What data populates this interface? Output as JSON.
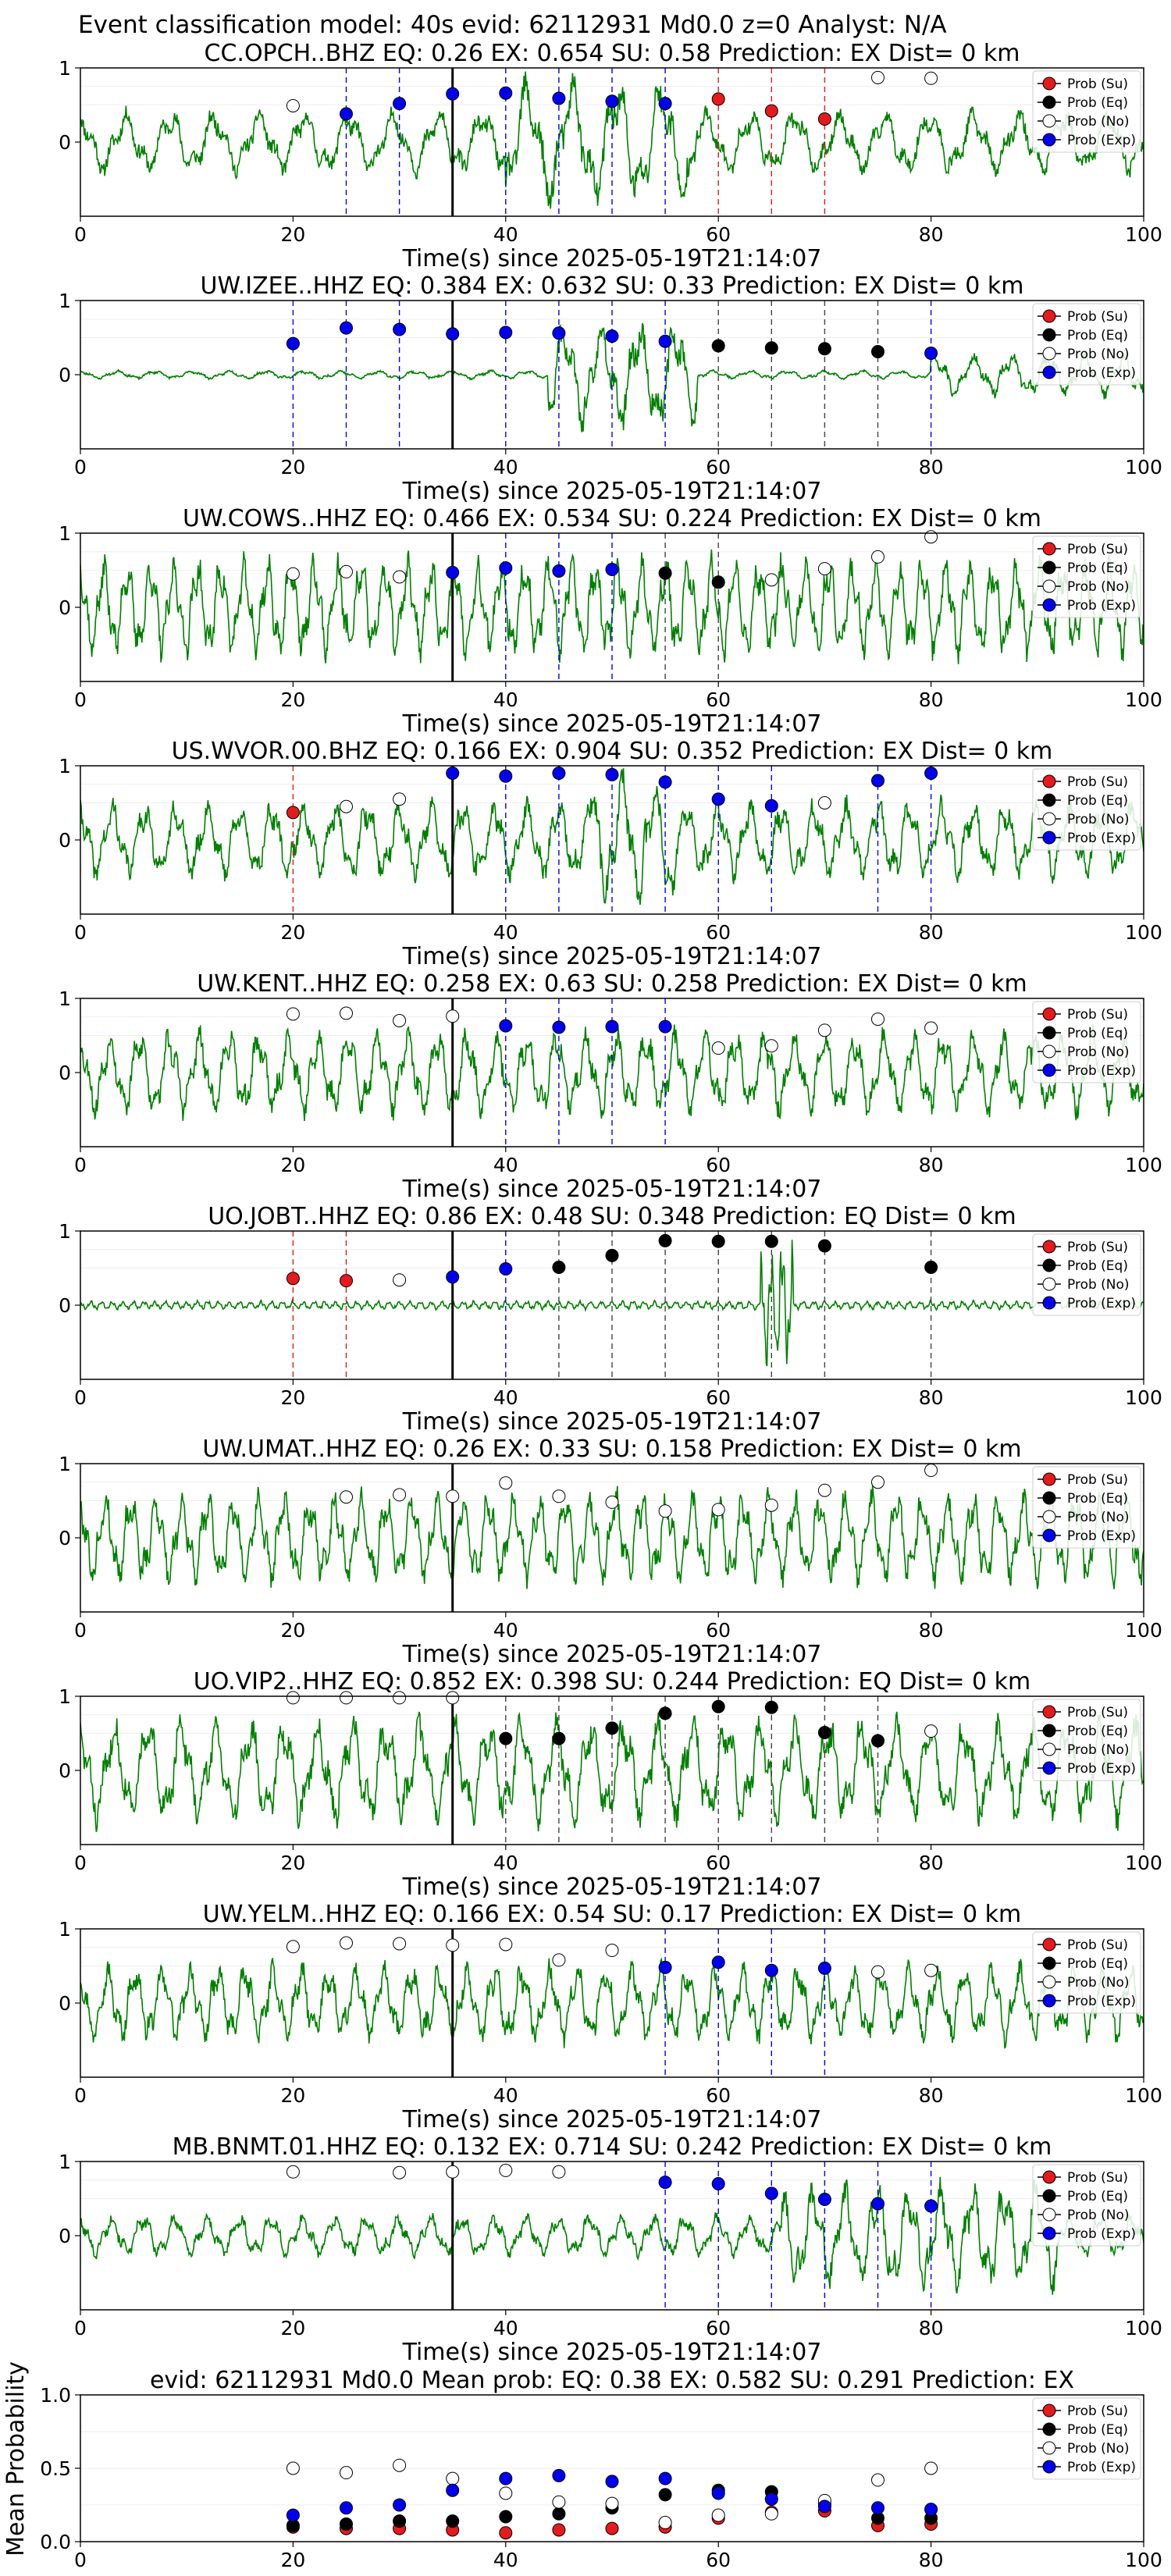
{
  "page": {
    "suptitle": "Event classification model: 40s evid: 62112931 Md0.0 z=0 Analyst: N/A",
    "xlabel": "Time(s) since 2025-05-19T21:14:07",
    "ylabel_summary": "Mean Probability"
  },
  "legend": [
    "Prob (Su)",
    "Prob (Eq)",
    "Prob (No)",
    "Prob (Exp)"
  ],
  "colors": {
    "su": "#e41a1c",
    "eq": "#000000",
    "no": "#ffffff",
    "exp": "#0000ee",
    "trace": "#008000",
    "axis": "#000000"
  },
  "chart_data": [
    {
      "type": "line",
      "title": "CC.OPCH..BHZ   EQ: 0.26  EX: 0.654  SU: 0.58   Prediction: EX    Dist= 0 km",
      "xlim": [
        0,
        100
      ],
      "ylim": [
        -1,
        1
      ],
      "xticks": [
        "0",
        "20",
        "40",
        "60",
        "80",
        "100"
      ],
      "yticks": [
        "1",
        "0"
      ],
      "trace": {
        "seed": 11,
        "amp": 0.45,
        "period": 4.2,
        "burst_start": 40,
        "burst_end": 58,
        "burst_amp": 0.9,
        "end_burst": 0
      },
      "windows": [
        {
          "t": 20,
          "p": 0.49,
          "cls": "no"
        },
        {
          "t": 25,
          "p": 0.38,
          "cls": "exp"
        },
        {
          "t": 30,
          "p": 0.52,
          "cls": "exp"
        },
        {
          "t": 35,
          "p": 0.65,
          "cls": "exp"
        },
        {
          "t": 40,
          "p": 0.66,
          "cls": "exp"
        },
        {
          "t": 45,
          "p": 0.59,
          "cls": "exp"
        },
        {
          "t": 50,
          "p": 0.55,
          "cls": "exp"
        },
        {
          "t": 55,
          "p": 0.52,
          "cls": "exp"
        },
        {
          "t": 60,
          "p": 0.58,
          "cls": "su"
        },
        {
          "t": 65,
          "p": 0.42,
          "cls": "su"
        },
        {
          "t": 70,
          "p": 0.31,
          "cls": "su"
        },
        {
          "t": 75,
          "p": 0.87,
          "cls": "no"
        },
        {
          "t": 80,
          "p": 0.86,
          "cls": "no"
        }
      ]
    },
    {
      "type": "line",
      "title": "UW.IZEE..HHZ   EQ: 0.384  EX: 0.632  SU: 0.33   Prediction: EX    Dist= 0 km",
      "xlim": [
        0,
        100
      ],
      "ylim": [
        -1,
        1
      ],
      "xticks": [
        "0",
        "20",
        "40",
        "60",
        "80",
        "100"
      ],
      "yticks": [
        "1",
        "0"
      ],
      "trace": {
        "seed": 23,
        "amp": 0.06,
        "period": 3.5,
        "burst_start": 44,
        "burst_end": 58,
        "burst_amp": 0.75,
        "end_burst": 0.3
      },
      "windows": [
        {
          "t": 20,
          "p": 0.42,
          "cls": "exp"
        },
        {
          "t": 25,
          "p": 0.63,
          "cls": "exp"
        },
        {
          "t": 30,
          "p": 0.61,
          "cls": "exp"
        },
        {
          "t": 35,
          "p": 0.55,
          "cls": "exp"
        },
        {
          "t": 40,
          "p": 0.57,
          "cls": "exp"
        },
        {
          "t": 45,
          "p": 0.56,
          "cls": "exp"
        },
        {
          "t": 50,
          "p": 0.52,
          "cls": "exp"
        },
        {
          "t": 55,
          "p": 0.45,
          "cls": "exp"
        },
        {
          "t": 60,
          "p": 0.39,
          "cls": "eq"
        },
        {
          "t": 65,
          "p": 0.36,
          "cls": "eq"
        },
        {
          "t": 70,
          "p": 0.35,
          "cls": "eq"
        },
        {
          "t": 75,
          "p": 0.31,
          "cls": "eq"
        },
        {
          "t": 80,
          "p": 0.29,
          "cls": "exp"
        }
      ]
    },
    {
      "type": "line",
      "title": "UW.COWS..HHZ   EQ: 0.466  EX: 0.534  SU: 0.224   Prediction: EX    Dist= 0 km",
      "xlim": [
        0,
        100
      ],
      "ylim": [
        -1,
        1
      ],
      "xticks": [
        "0",
        "20",
        "40",
        "60",
        "80",
        "100"
      ],
      "yticks": [
        "1",
        "0"
      ],
      "trace": {
        "seed": 37,
        "amp": 0.7,
        "period": 2.2,
        "burst_start": 0,
        "burst_end": 0,
        "burst_amp": 0,
        "end_burst": 0
      },
      "windows": [
        {
          "t": 20,
          "p": 0.45,
          "cls": "no"
        },
        {
          "t": 25,
          "p": 0.48,
          "cls": "no"
        },
        {
          "t": 30,
          "p": 0.41,
          "cls": "no"
        },
        {
          "t": 35,
          "p": 0.47,
          "cls": "exp"
        },
        {
          "t": 40,
          "p": 0.53,
          "cls": "exp"
        },
        {
          "t": 45,
          "p": 0.49,
          "cls": "exp"
        },
        {
          "t": 50,
          "p": 0.51,
          "cls": "exp"
        },
        {
          "t": 55,
          "p": 0.46,
          "cls": "eq"
        },
        {
          "t": 60,
          "p": 0.34,
          "cls": "eq"
        },
        {
          "t": 65,
          "p": 0.37,
          "cls": "no"
        },
        {
          "t": 70,
          "p": 0.52,
          "cls": "no"
        },
        {
          "t": 75,
          "p": 0.68,
          "cls": "no"
        },
        {
          "t": 80,
          "p": 0.95,
          "cls": "no"
        }
      ]
    },
    {
      "type": "line",
      "title": "US.WVOR.00.BHZ   EQ: 0.166  EX: 0.904  SU: 0.352   Prediction: EX    Dist= 0 km",
      "xlim": [
        0,
        100
      ],
      "ylim": [
        -1,
        1
      ],
      "xticks": [
        "0",
        "20",
        "40",
        "60",
        "80",
        "100"
      ],
      "yticks": [
        "1",
        "0"
      ],
      "trace": {
        "seed": 41,
        "amp": 0.55,
        "period": 3.0,
        "burst_start": 48,
        "burst_end": 56,
        "burst_amp": 0.95,
        "end_burst": 0
      },
      "windows": [
        {
          "t": 20,
          "p": 0.37,
          "cls": "su"
        },
        {
          "t": 25,
          "p": 0.45,
          "cls": "no"
        },
        {
          "t": 30,
          "p": 0.55,
          "cls": "no"
        },
        {
          "t": 35,
          "p": 0.9,
          "cls": "exp"
        },
        {
          "t": 40,
          "p": 0.86,
          "cls": "exp"
        },
        {
          "t": 45,
          "p": 0.9,
          "cls": "exp"
        },
        {
          "t": 50,
          "p": 0.88,
          "cls": "exp"
        },
        {
          "t": 55,
          "p": 0.78,
          "cls": "exp"
        },
        {
          "t": 60,
          "p": 0.55,
          "cls": "exp"
        },
        {
          "t": 65,
          "p": 0.46,
          "cls": "exp"
        },
        {
          "t": 70,
          "p": 0.5,
          "cls": "no"
        },
        {
          "t": 75,
          "p": 0.8,
          "cls": "exp"
        },
        {
          "t": 80,
          "p": 0.9,
          "cls": "exp"
        }
      ]
    },
    {
      "type": "line",
      "title": "UW.KENT..HHZ   EQ: 0.258  EX: 0.63  SU: 0.258   Prediction: EX    Dist= 0 km",
      "xlim": [
        0,
        100
      ],
      "ylim": [
        -1,
        1
      ],
      "xticks": [
        "0",
        "20",
        "40",
        "60",
        "80",
        "100"
      ],
      "yticks": [
        "1",
        "0"
      ],
      "trace": {
        "seed": 53,
        "amp": 0.6,
        "period": 2.8,
        "burst_start": 0,
        "burst_end": 0,
        "burst_amp": 0,
        "end_burst": 0
      },
      "windows": [
        {
          "t": 20,
          "p": 0.79,
          "cls": "no"
        },
        {
          "t": 25,
          "p": 0.8,
          "cls": "no"
        },
        {
          "t": 30,
          "p": 0.7,
          "cls": "no"
        },
        {
          "t": 35,
          "p": 0.76,
          "cls": "no"
        },
        {
          "t": 40,
          "p": 0.63,
          "cls": "exp"
        },
        {
          "t": 45,
          "p": 0.61,
          "cls": "exp"
        },
        {
          "t": 50,
          "p": 0.62,
          "cls": "exp"
        },
        {
          "t": 55,
          "p": 0.62,
          "cls": "exp"
        },
        {
          "t": 60,
          "p": 0.33,
          "cls": "no"
        },
        {
          "t": 65,
          "p": 0.36,
          "cls": "no"
        },
        {
          "t": 70,
          "p": 0.57,
          "cls": "no"
        },
        {
          "t": 75,
          "p": 0.72,
          "cls": "no"
        },
        {
          "t": 80,
          "p": 0.6,
          "cls": "no"
        }
      ]
    },
    {
      "type": "line",
      "title": "UO.JOBT..HHZ   EQ: 0.86  EX: 0.48  SU: 0.348   Prediction: EQ    Dist= 0 km",
      "xlim": [
        0,
        100
      ],
      "ylim": [
        -1,
        1
      ],
      "xticks": [
        "0",
        "20",
        "40",
        "60",
        "80",
        "100"
      ],
      "yticks": [
        "1",
        "0"
      ],
      "trace": {
        "seed": 67,
        "amp": 0.06,
        "period": 1.0,
        "burst_start": 64,
        "burst_end": 67,
        "burst_amp": 0.9,
        "end_burst": 0
      },
      "windows": [
        {
          "t": 20,
          "p": 0.36,
          "cls": "su"
        },
        {
          "t": 25,
          "p": 0.33,
          "cls": "su"
        },
        {
          "t": 30,
          "p": 0.34,
          "cls": "no"
        },
        {
          "t": 35,
          "p": 0.38,
          "cls": "exp"
        },
        {
          "t": 40,
          "p": 0.49,
          "cls": "exp"
        },
        {
          "t": 45,
          "p": 0.51,
          "cls": "eq"
        },
        {
          "t": 50,
          "p": 0.67,
          "cls": "eq"
        },
        {
          "t": 55,
          "p": 0.87,
          "cls": "eq"
        },
        {
          "t": 60,
          "p": 0.86,
          "cls": "eq"
        },
        {
          "t": 65,
          "p": 0.86,
          "cls": "eq"
        },
        {
          "t": 70,
          "p": 0.8,
          "cls": "eq"
        },
        {
          "t": 80,
          "p": 0.51,
          "cls": "eq"
        }
      ]
    },
    {
      "type": "line",
      "title": "UW.UMAT..HHZ   EQ: 0.26  EX: 0.33  SU: 0.158   Prediction: EX    Dist= 0 km",
      "xlim": [
        0,
        100
      ],
      "ylim": [
        -1,
        1
      ],
      "xticks": [
        "0",
        "20",
        "40",
        "60",
        "80",
        "100"
      ],
      "yticks": [
        "1",
        "0"
      ],
      "trace": {
        "seed": 79,
        "amp": 0.65,
        "period": 2.4,
        "burst_start": 57,
        "burst_end": 64,
        "burst_amp": 0.6,
        "end_burst": 0
      },
      "windows": [
        {
          "t": 25,
          "p": 0.55,
          "cls": "no"
        },
        {
          "t": 30,
          "p": 0.58,
          "cls": "no"
        },
        {
          "t": 35,
          "p": 0.56,
          "cls": "no"
        },
        {
          "t": 40,
          "p": 0.74,
          "cls": "no"
        },
        {
          "t": 45,
          "p": 0.56,
          "cls": "no"
        },
        {
          "t": 50,
          "p": 0.48,
          "cls": "no"
        },
        {
          "t": 55,
          "p": 0.36,
          "cls": "no"
        },
        {
          "t": 60,
          "p": 0.38,
          "cls": "no"
        },
        {
          "t": 65,
          "p": 0.44,
          "cls": "no"
        },
        {
          "t": 70,
          "p": 0.64,
          "cls": "no"
        },
        {
          "t": 75,
          "p": 0.75,
          "cls": "no"
        },
        {
          "t": 80,
          "p": 0.91,
          "cls": "no"
        }
      ]
    },
    {
      "type": "line",
      "title": "UO.VIP2..HHZ   EQ: 0.852  EX: 0.398  SU: 0.244   Prediction: EQ    Dist= 0 km",
      "xlim": [
        0,
        100
      ],
      "ylim": [
        -1,
        1
      ],
      "xticks": [
        "0",
        "20",
        "40",
        "60",
        "80",
        "100"
      ],
      "yticks": [
        "1",
        "0"
      ],
      "trace": {
        "seed": 83,
        "amp": 0.75,
        "period": 3.2,
        "burst_start": 0,
        "burst_end": 0,
        "burst_amp": 0,
        "end_burst": 0
      },
      "windows": [
        {
          "t": 20,
          "p": 0.98,
          "cls": "no"
        },
        {
          "t": 25,
          "p": 0.98,
          "cls": "no"
        },
        {
          "t": 30,
          "p": 0.98,
          "cls": "no"
        },
        {
          "t": 35,
          "p": 0.98,
          "cls": "no"
        },
        {
          "t": 40,
          "p": 0.43,
          "cls": "eq"
        },
        {
          "t": 45,
          "p": 0.43,
          "cls": "eq"
        },
        {
          "t": 50,
          "p": 0.57,
          "cls": "eq"
        },
        {
          "t": 55,
          "p": 0.77,
          "cls": "eq"
        },
        {
          "t": 60,
          "p": 0.86,
          "cls": "eq"
        },
        {
          "t": 65,
          "p": 0.85,
          "cls": "eq"
        },
        {
          "t": 70,
          "p": 0.51,
          "cls": "eq"
        },
        {
          "t": 75,
          "p": 0.4,
          "cls": "eq"
        },
        {
          "t": 80,
          "p": 0.53,
          "cls": "no"
        }
      ]
    },
    {
      "type": "line",
      "title": "UW.YELM..HHZ   EQ: 0.166  EX: 0.54  SU: 0.17   Prediction: EX    Dist= 0 km",
      "xlim": [
        0,
        100
      ],
      "ylim": [
        -1,
        1
      ],
      "xticks": [
        "0",
        "20",
        "40",
        "60",
        "80",
        "100"
      ],
      "yticks": [
        "1",
        "0"
      ],
      "trace": {
        "seed": 97,
        "amp": 0.55,
        "period": 2.6,
        "burst_start": 0,
        "burst_end": 0,
        "burst_amp": 0,
        "end_burst": 0
      },
      "windows": [
        {
          "t": 20,
          "p": 0.76,
          "cls": "no"
        },
        {
          "t": 25,
          "p": 0.81,
          "cls": "no"
        },
        {
          "t": 30,
          "p": 0.8,
          "cls": "no"
        },
        {
          "t": 35,
          "p": 0.78,
          "cls": "no"
        },
        {
          "t": 40,
          "p": 0.79,
          "cls": "no"
        },
        {
          "t": 45,
          "p": 0.58,
          "cls": "no"
        },
        {
          "t": 50,
          "p": 0.71,
          "cls": "no"
        },
        {
          "t": 55,
          "p": 0.48,
          "cls": "exp"
        },
        {
          "t": 60,
          "p": 0.55,
          "cls": "exp"
        },
        {
          "t": 65,
          "p": 0.44,
          "cls": "exp"
        },
        {
          "t": 70,
          "p": 0.47,
          "cls": "exp"
        },
        {
          "t": 75,
          "p": 0.42,
          "cls": "no"
        },
        {
          "t": 80,
          "p": 0.44,
          "cls": "no"
        }
      ]
    },
    {
      "type": "line",
      "title": "MB.BNMT.01.HHZ   EQ: 0.132  EX: 0.714  SU: 0.242   Prediction: EX    Dist= 0 km",
      "xlim": [
        0,
        100
      ],
      "ylim": [
        -1,
        1
      ],
      "xticks": [
        "0",
        "20",
        "40",
        "60",
        "80",
        "100"
      ],
      "yticks": [
        "1",
        "0"
      ],
      "trace": {
        "seed": 101,
        "amp": 0.3,
        "period": 3.0,
        "burst_start": 66,
        "burst_end": 92,
        "burst_amp": 0.75,
        "end_burst": 0
      },
      "windows": [
        {
          "t": 20,
          "p": 0.86,
          "cls": "no"
        },
        {
          "t": 30,
          "p": 0.85,
          "cls": "no"
        },
        {
          "t": 35,
          "p": 0.86,
          "cls": "no"
        },
        {
          "t": 40,
          "p": 0.88,
          "cls": "no"
        },
        {
          "t": 45,
          "p": 0.86,
          "cls": "no"
        },
        {
          "t": 55,
          "p": 0.72,
          "cls": "exp"
        },
        {
          "t": 60,
          "p": 0.7,
          "cls": "exp"
        },
        {
          "t": 65,
          "p": 0.57,
          "cls": "exp"
        },
        {
          "t": 70,
          "p": 0.49,
          "cls": "exp"
        },
        {
          "t": 75,
          "p": 0.43,
          "cls": "exp"
        },
        {
          "t": 80,
          "p": 0.4,
          "cls": "exp"
        }
      ]
    },
    {
      "type": "scatter",
      "title": "evid: 62112931  Md0.0   Mean prob:    EQ: 0.38  EX: 0.582  SU: 0.291   Prediction: EX",
      "ylabel": "Mean Probability",
      "xlim": [
        0,
        100
      ],
      "ylim": [
        0,
        1
      ],
      "xticks": [
        "0",
        "20",
        "40",
        "60",
        "80",
        "100"
      ],
      "yticks": [
        "1.0",
        "0.5",
        "0.0"
      ],
      "x": [
        20,
        25,
        30,
        35,
        40,
        45,
        50,
        55,
        60,
        65,
        70,
        75,
        80
      ],
      "series": [
        {
          "name": "Prob (Su)",
          "cls": "su",
          "values": [
            0.1,
            0.09,
            0.09,
            0.08,
            0.06,
            0.08,
            0.09,
            0.1,
            0.16,
            0.2,
            0.21,
            0.11,
            0.12
          ]
        },
        {
          "name": "Prob (Eq)",
          "cls": "eq",
          "values": [
            0.11,
            0.12,
            0.14,
            0.14,
            0.17,
            0.19,
            0.23,
            0.32,
            0.35,
            0.34,
            0.26,
            0.16,
            0.16
          ]
        },
        {
          "name": "Prob (No)",
          "cls": "no",
          "values": [
            0.5,
            0.47,
            0.52,
            0.43,
            0.33,
            0.27,
            0.26,
            0.13,
            0.18,
            0.19,
            0.28,
            0.42,
            0.5
          ]
        },
        {
          "name": "Prob (Exp)",
          "cls": "exp",
          "values": [
            0.18,
            0.23,
            0.25,
            0.35,
            0.43,
            0.45,
            0.41,
            0.43,
            0.33,
            0.29,
            0.24,
            0.23,
            0.22
          ]
        }
      ]
    }
  ]
}
